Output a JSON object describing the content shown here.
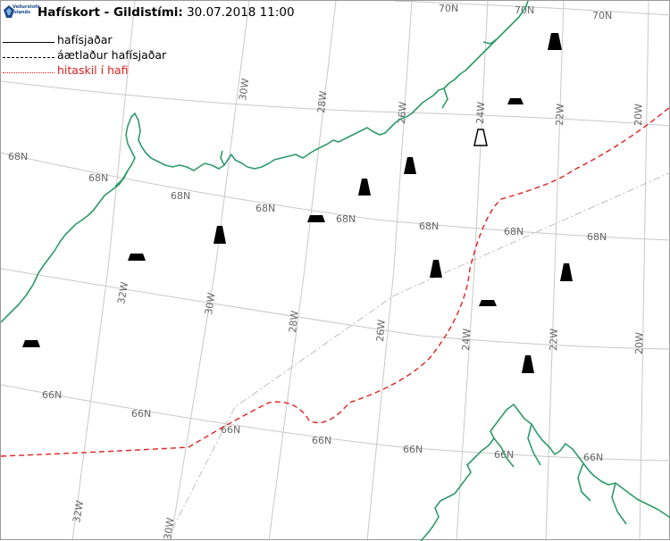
{
  "header": {
    "logo_text": "Veðurstofa Íslands",
    "title_bold": "Hafískort - Gildistími:",
    "title_time": "30.07.2018 11:00"
  },
  "legend": [
    {
      "label": "hafísjaðar",
      "style": "solid",
      "color": "#000000"
    },
    {
      "label": "áætlaður hafísjaðar",
      "style": "dashed",
      "color": "#000000"
    },
    {
      "label": "hitaskil í hafi",
      "style": "dotted",
      "color": "#e02020"
    }
  ],
  "colors": {
    "coastline": "#2e9a6a",
    "temperature_front": "#e02020",
    "grid": "#c8c8c8",
    "iceberg": "#000000"
  },
  "grid_labels": {
    "latitudes": [
      "70N",
      "68N",
      "66N"
    ],
    "longitudes": [
      "32W",
      "30W",
      "28W",
      "26W",
      "24W",
      "22W",
      "20W"
    ]
  },
  "markers": {
    "iceberg_filled_count": 8,
    "iceberg_outline_count": 1,
    "iceberg_flat_count": 5
  }
}
